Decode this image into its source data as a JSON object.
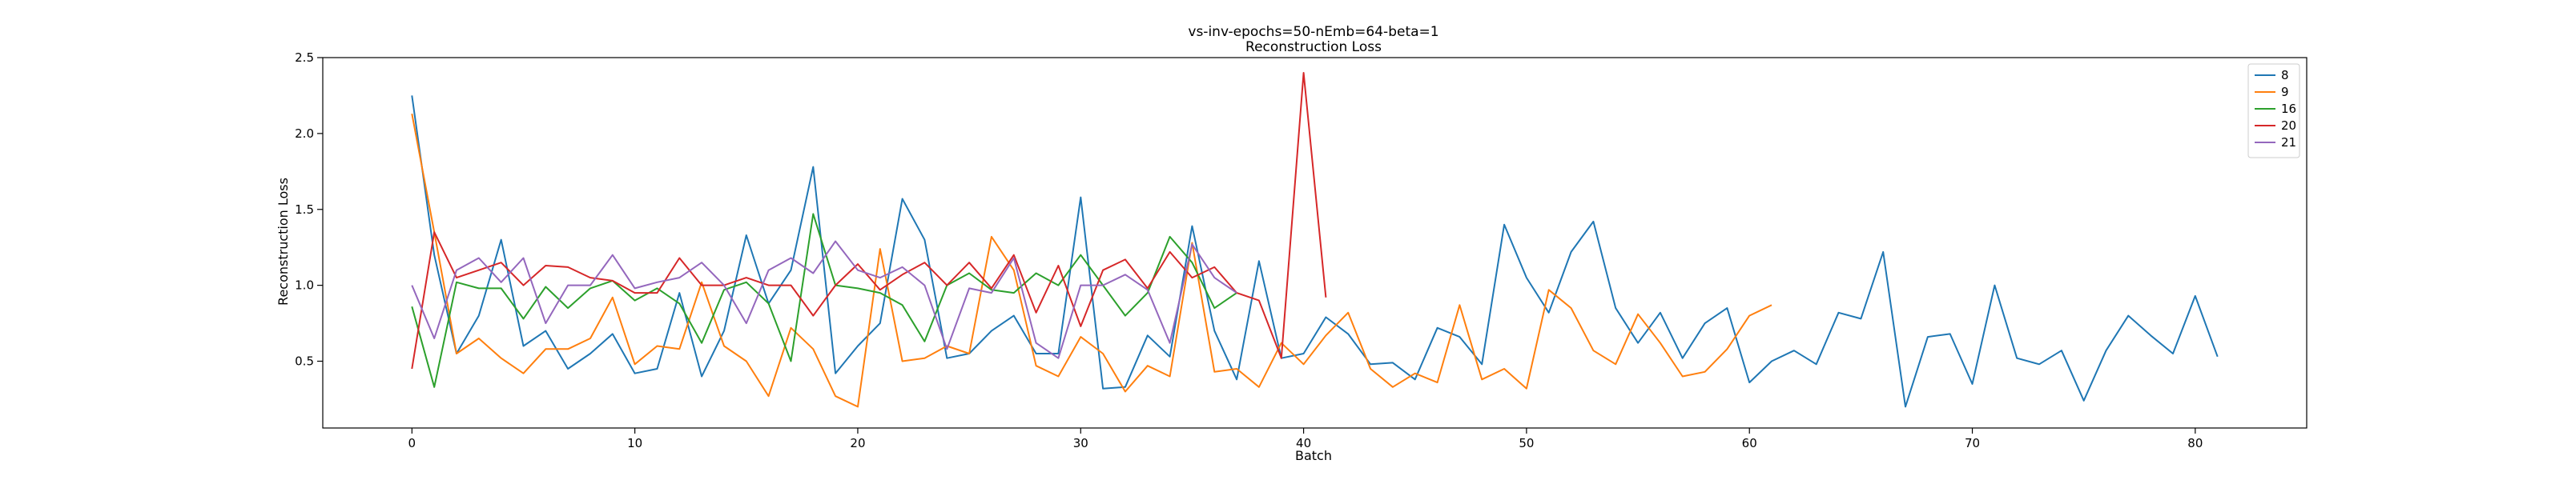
{
  "chart_data": {
    "type": "line",
    "title": "vs-inv-epochs=50-nEmb=64-beta=1",
    "subtitle": "Reconstruction Loss",
    "xlabel": "Batch",
    "ylabel": "Reconstruction Loss",
    "xlim": [
      -4,
      85
    ],
    "ylim": [
      0.06,
      2.5
    ],
    "xticks": [
      0,
      10,
      20,
      30,
      40,
      50,
      60,
      70,
      80
    ],
    "yticks": [
      0.5,
      1.0,
      1.5,
      2.0,
      2.5
    ],
    "xtick_labels": [
      "0",
      "10",
      "20",
      "30",
      "40",
      "50",
      "60",
      "70",
      "80"
    ],
    "ytick_labels": [
      "0.5",
      "1.0",
      "1.5",
      "2.0",
      "2.5"
    ],
    "grid": false,
    "legend_position": "top-right",
    "series": [
      {
        "name": "8",
        "color": "#1f77b4",
        "values": [
          2.25,
          1.2,
          0.55,
          0.8,
          1.3,
          0.6,
          0.7,
          0.45,
          0.55,
          0.68,
          0.42,
          0.45,
          0.95,
          0.4,
          0.7,
          1.33,
          0.88,
          1.1,
          1.78,
          0.42,
          0.6,
          0.75,
          1.57,
          1.3,
          0.52,
          0.55,
          0.7,
          0.8,
          0.55,
          0.55,
          1.58,
          0.32,
          0.33,
          0.67,
          0.53,
          1.39,
          0.7,
          0.38,
          1.16,
          0.52,
          0.55,
          0.79,
          0.68,
          0.48,
          0.49,
          0.38,
          0.72,
          0.66,
          0.48,
          1.4,
          1.05,
          0.82,
          1.22,
          1.42,
          0.85,
          0.62,
          0.82,
          0.52,
          0.75,
          0.85,
          0.36,
          0.5,
          0.57,
          0.48,
          0.82,
          0.78,
          1.22,
          0.2,
          0.66,
          0.68,
          0.35,
          1.0,
          0.52,
          0.48,
          0.57,
          0.24,
          0.57,
          0.8,
          0.67,
          0.55,
          0.93,
          0.53
        ]
      },
      {
        "name": "9",
        "color": "#ff7f0e",
        "values": [
          2.13,
          1.35,
          0.55,
          0.65,
          0.52,
          0.42,
          0.58,
          0.58,
          0.65,
          0.92,
          0.48,
          0.6,
          0.58,
          1.02,
          0.6,
          0.5,
          0.27,
          0.72,
          0.58,
          0.27,
          0.2,
          1.24,
          0.5,
          0.52,
          0.6,
          0.55,
          1.32,
          1.1,
          0.47,
          0.4,
          0.66,
          0.55,
          0.3,
          0.47,
          0.4,
          1.28,
          0.43,
          0.45,
          0.33,
          0.62,
          0.48,
          0.67,
          0.82,
          0.45,
          0.33,
          0.42,
          0.36,
          0.87,
          0.38,
          0.45,
          0.32,
          0.97,
          0.85,
          0.57,
          0.48,
          0.81,
          0.62,
          0.4,
          0.43,
          0.58,
          0.8,
          0.87
        ]
      },
      {
        "name": "16",
        "color": "#2ca02c",
        "values": [
          0.86,
          0.33,
          1.02,
          0.98,
          0.98,
          0.78,
          0.99,
          0.85,
          0.98,
          1.03,
          0.9,
          0.98,
          0.88,
          0.62,
          0.97,
          1.02,
          0.88,
          0.5,
          1.47,
          1.0,
          0.98,
          0.95,
          0.87,
          0.63,
          1.0,
          1.08,
          0.97,
          0.95,
          1.08,
          1.0,
          1.2,
          1.0,
          0.8,
          0.95,
          1.32,
          1.15,
          0.85,
          0.95
        ]
      },
      {
        "name": "20",
        "color": "#d62728",
        "values": [
          0.45,
          1.35,
          1.05,
          1.1,
          1.15,
          1.0,
          1.13,
          1.12,
          1.05,
          1.03,
          0.95,
          0.95,
          1.18,
          1.0,
          1.0,
          1.05,
          1.0,
          1.0,
          0.8,
          1.0,
          1.14,
          0.97,
          1.07,
          1.15,
          1.0,
          1.15,
          0.98,
          1.2,
          0.82,
          1.13,
          0.73,
          1.1,
          1.17,
          0.98,
          1.22,
          1.05,
          1.12,
          0.95,
          0.9,
          0.52,
          2.4,
          0.92
        ]
      },
      {
        "name": "21",
        "color": "#9467bd",
        "values": [
          1.0,
          0.65,
          1.1,
          1.18,
          1.02,
          1.18,
          0.75,
          1.0,
          1.0,
          1.2,
          0.98,
          1.02,
          1.05,
          1.15,
          1.0,
          0.75,
          1.1,
          1.18,
          1.08,
          1.29,
          1.1,
          1.05,
          1.12,
          1.0,
          0.58,
          0.98,
          0.95,
          1.18,
          0.62,
          0.52,
          1.0,
          1.0,
          1.07,
          0.97,
          0.62,
          1.27,
          1.05,
          0.95
        ]
      }
    ]
  }
}
